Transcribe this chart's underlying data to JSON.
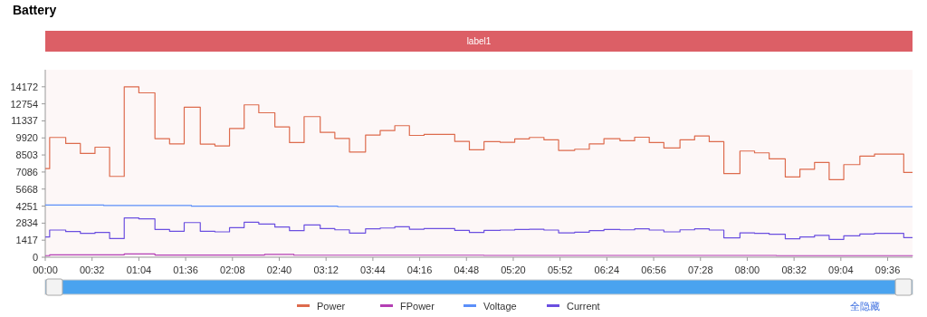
{
  "chart_data": {
    "type": "step",
    "title": "Battery",
    "xlim": [
      0,
      593
    ],
    "xticks": [
      {
        "value": 0,
        "label": "00:00"
      },
      {
        "value": 32,
        "label": "00:32"
      },
      {
        "value": 64,
        "label": "01:04"
      },
      {
        "value": 96,
        "label": "01:36"
      },
      {
        "value": 128,
        "label": "02:08"
      },
      {
        "value": 160,
        "label": "02:40"
      },
      {
        "value": 192,
        "label": "03:12"
      },
      {
        "value": 224,
        "label": "03:44"
      },
      {
        "value": 256,
        "label": "04:16"
      },
      {
        "value": 288,
        "label": "04:48"
      },
      {
        "value": 320,
        "label": "05:20"
      },
      {
        "value": 352,
        "label": "05:52"
      },
      {
        "value": 384,
        "label": "06:24"
      },
      {
        "value": 416,
        "label": "06:56"
      },
      {
        "value": 448,
        "label": "07:28"
      },
      {
        "value": 480,
        "label": "08:00"
      },
      {
        "value": 512,
        "label": "08:32"
      },
      {
        "value": 544,
        "label": "09:04"
      },
      {
        "value": 576,
        "label": "09:36"
      }
    ],
    "ylim": [
      0,
      15589
    ],
    "yticks": [
      0,
      1417,
      2834,
      4251,
      5668,
      7086,
      8503,
      9920,
      11337,
      12754,
      14172
    ],
    "bands": [
      {
        "axis": "x",
        "from": 0,
        "to": 593,
        "label": "label1",
        "color": "#dc5f66"
      }
    ],
    "legend": "bottom",
    "annotations": [
      "全隐藏"
    ],
    "series": [
      {
        "name": "Power",
        "color": "#dd6b4d",
        "x": [
          0,
          3,
          14,
          24,
          34,
          44,
          54,
          64,
          75,
          85,
          95,
          106,
          116,
          126,
          136,
          146,
          157,
          167,
          177,
          188,
          198,
          208,
          219,
          229,
          239,
          249,
          259,
          280,
          290,
          300,
          311,
          321,
          331,
          341,
          351,
          362,
          372,
          382,
          393,
          403,
          413,
          423,
          434,
          444,
          454,
          464,
          475,
          485,
          495,
          506,
          516,
          526,
          536,
          546,
          557,
          567,
          587,
          593
        ],
        "values": [
          7370,
          9960,
          9460,
          8630,
          9150,
          6720,
          14170,
          13670,
          9860,
          9430,
          12470,
          9410,
          9260,
          10710,
          12670,
          12010,
          10840,
          9530,
          11690,
          10380,
          9880,
          8750,
          10160,
          10530,
          10940,
          10130,
          10210,
          9630,
          8930,
          9610,
          9560,
          9830,
          9960,
          9760,
          8880,
          8980,
          9430,
          9860,
          9680,
          9980,
          9530,
          9080,
          9760,
          10080,
          9610,
          6950,
          8830,
          8680,
          8180,
          6670,
          7320,
          7880,
          6450,
          7700,
          8400,
          8580,
          7050,
          7050
        ]
      },
      {
        "name": "FPower",
        "color": "#b43fb4",
        "x": [
          0,
          3,
          54,
          75,
          150,
          170,
          300,
          500,
          593
        ],
        "values": [
          130,
          200,
          270,
          180,
          230,
          170,
          150,
          130,
          110
        ]
      },
      {
        "name": "Voltage",
        "color": "#5b8ff9",
        "x": [
          0,
          40,
          100,
          200,
          593
        ],
        "values": [
          4340,
          4300,
          4240,
          4200,
          4200
        ]
      },
      {
        "name": "Current",
        "color": "#6b4fe0",
        "x": [
          0,
          3,
          14,
          24,
          34,
          44,
          54,
          64,
          75,
          85,
          95,
          106,
          116,
          126,
          136,
          146,
          157,
          167,
          177,
          188,
          198,
          208,
          219,
          229,
          239,
          249,
          259,
          280,
          290,
          300,
          311,
          321,
          331,
          341,
          351,
          362,
          372,
          382,
          393,
          403,
          413,
          423,
          434,
          444,
          454,
          464,
          475,
          485,
          495,
          506,
          516,
          526,
          536,
          546,
          557,
          567,
          587,
          593
        ],
        "values": [
          1680,
          2260,
          2130,
          1980,
          2060,
          1560,
          3260,
          3190,
          2310,
          2160,
          2880,
          2160,
          2110,
          2460,
          2910,
          2760,
          2510,
          2210,
          2680,
          2380,
          2280,
          2010,
          2360,
          2430,
          2530,
          2330,
          2380,
          2230,
          2060,
          2230,
          2260,
          2310,
          2330,
          2260,
          2030,
          2080,
          2210,
          2310,
          2280,
          2360,
          2260,
          2110,
          2280,
          2360,
          2260,
          1610,
          2030,
          1980,
          1910,
          1530,
          1680,
          1810,
          1480,
          1780,
          1930,
          1980,
          1630,
          1630
        ]
      }
    ]
  }
}
